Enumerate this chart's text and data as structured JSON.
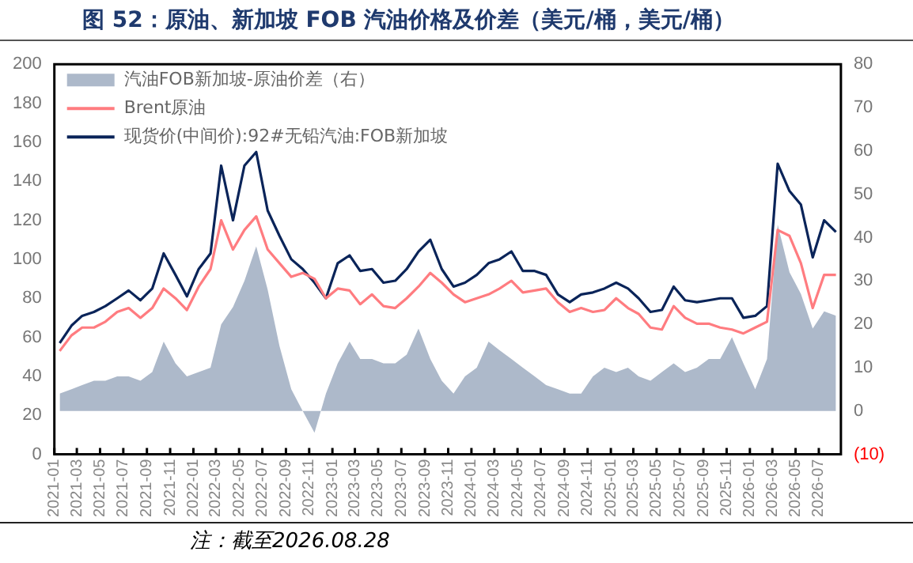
{
  "chart_data": {
    "type": "line",
    "title": "图 52：原油、新加坡 FOB 汽油价格及价差（美元/桶，美元/桶）",
    "annotations": [
      "注：截至2026.08.28"
    ],
    "x": [
      "2021-01-15",
      "2021-02-15",
      "2021-03-15",
      "2021-04-15",
      "2021-05-15",
      "2021-06-15",
      "2021-07-15",
      "2021-08-15",
      "2021-09-15",
      "2021-10-15",
      "2021-11-15",
      "2021-12-15",
      "2022-01-15",
      "2022-02-15",
      "2022-03-15",
      "2022-04-15",
      "2022-05-15",
      "2022-06-15",
      "2022-07-15",
      "2022-08-15",
      "2022-09-15",
      "2022-10-15",
      "2022-11-15",
      "2022-12-15",
      "2023-01-15",
      "2023-02-15",
      "2023-03-15",
      "2023-04-15",
      "2023-05-15",
      "2023-06-15",
      "2023-07-15",
      "2023-08-15",
      "2023-09-15",
      "2023-10-15",
      "2023-11-15",
      "2023-12-15",
      "2024-01-15",
      "2024-02-15",
      "2024-03-15",
      "2024-04-15",
      "2024-05-15",
      "2024-06-15",
      "2024-07-15",
      "2024-08-15",
      "2024-09-15",
      "2024-10-15",
      "2024-11-15",
      "2024-12-15",
      "2025-01-15",
      "2025-02-15",
      "2025-03-15",
      "2025-04-15",
      "2025-05-15",
      "2025-06-15",
      "2025-07-15",
      "2025-08-15",
      "2025-09-15",
      "2025-10-15",
      "2025-11-15",
      "2025-12-15",
      "2026-01-15",
      "2026-02-15",
      "2026-03-15",
      "2026-04-15",
      "2026-05-15",
      "2026-06-15",
      "2026-07-15",
      "2026-08-15"
    ],
    "series": [
      {
        "name": "汽油FOB新加坡-原油价差（右）",
        "type": "area",
        "axis": "y2",
        "color": "#adb9ca",
        "values": [
          4,
          5,
          6,
          7,
          7,
          8,
          8,
          7,
          9,
          16,
          11,
          8,
          9,
          10,
          20,
          24,
          30,
          38,
          28,
          15,
          5,
          0,
          -5,
          4,
          11,
          16,
          12,
          12,
          11,
          11,
          13,
          19,
          12,
          7,
          4,
          8,
          10,
          16,
          14,
          12,
          10,
          8,
          6,
          5,
          4,
          4,
          8,
          10,
          9,
          10,
          8,
          7,
          9,
          11,
          9,
          10,
          12,
          12,
          17,
          11,
          5,
          12,
          43,
          32,
          27,
          19,
          23,
          22
        ]
      },
      {
        "name": "Brent原油",
        "type": "line",
        "color": "#ff7c80",
        "values": [
          53,
          61,
          65,
          65,
          68,
          73,
          75,
          70,
          75,
          85,
          80,
          74,
          86,
          95,
          120,
          105,
          115,
          122,
          105,
          98,
          91,
          93,
          90,
          80,
          85,
          84,
          77,
          82,
          76,
          75,
          80,
          86,
          93,
          88,
          82,
          78,
          80,
          82,
          85,
          89,
          83,
          84,
          85,
          78,
          73,
          75,
          73,
          74,
          80,
          75,
          72,
          65,
          64,
          76,
          70,
          67,
          67,
          65,
          64,
          62,
          65,
          68,
          115,
          112,
          98,
          75,
          92,
          92
        ]
      },
      {
        "name": "现货价(中间价):92#无铅汽油:FOB新加坡",
        "type": "line",
        "color": "#0a2459",
        "values": [
          57,
          66,
          71,
          73,
          76,
          80,
          84,
          79,
          85,
          103,
          92,
          81,
          95,
          103,
          148,
          120,
          148,
          155,
          125,
          112,
          100,
          95,
          88,
          80,
          98,
          102,
          94,
          95,
          88,
          89,
          95,
          104,
          110,
          95,
          86,
          88,
          92,
          98,
          100,
          104,
          94,
          94,
          92,
          82,
          78,
          82,
          83,
          85,
          88,
          85,
          80,
          73,
          74,
          86,
          79,
          78,
          79,
          80,
          80,
          70,
          71,
          76,
          149,
          135,
          128,
          101,
          120,
          114
        ]
      }
    ],
    "xlim": [
      "2021-01-01",
      "2026-08-28"
    ],
    "xticks": [
      "2021-01",
      "2021-03",
      "2021-05",
      "2021-07",
      "2021-09",
      "2021-11",
      "2022-01",
      "2022-03",
      "2022-05",
      "2022-07",
      "2022-09",
      "2022-11",
      "2023-01",
      "2023-03",
      "2023-05",
      "2023-07",
      "2023-09",
      "2023-11",
      "2024-01",
      "2024-03",
      "2024-05",
      "2024-07",
      "2024-09",
      "2024-11",
      "2025-01",
      "2025-03",
      "2025-05",
      "2025-07",
      "2025-09",
      "2025-11",
      "2026-01",
      "2026-03",
      "2026-05",
      "2026-07"
    ],
    "ylim": [
      0,
      200
    ],
    "yticks": [
      0,
      20,
      40,
      60,
      80,
      100,
      120,
      140,
      160,
      180,
      200
    ],
    "y2lim": [
      -10,
      80
    ],
    "y2ticks": [
      {
        "value": -10,
        "label": "(10)"
      },
      0,
      10,
      20,
      30,
      40,
      50,
      60,
      70,
      80
    ],
    "grid": false,
    "legend": "top left",
    "marker": "none",
    "line_style": "solid"
  }
}
